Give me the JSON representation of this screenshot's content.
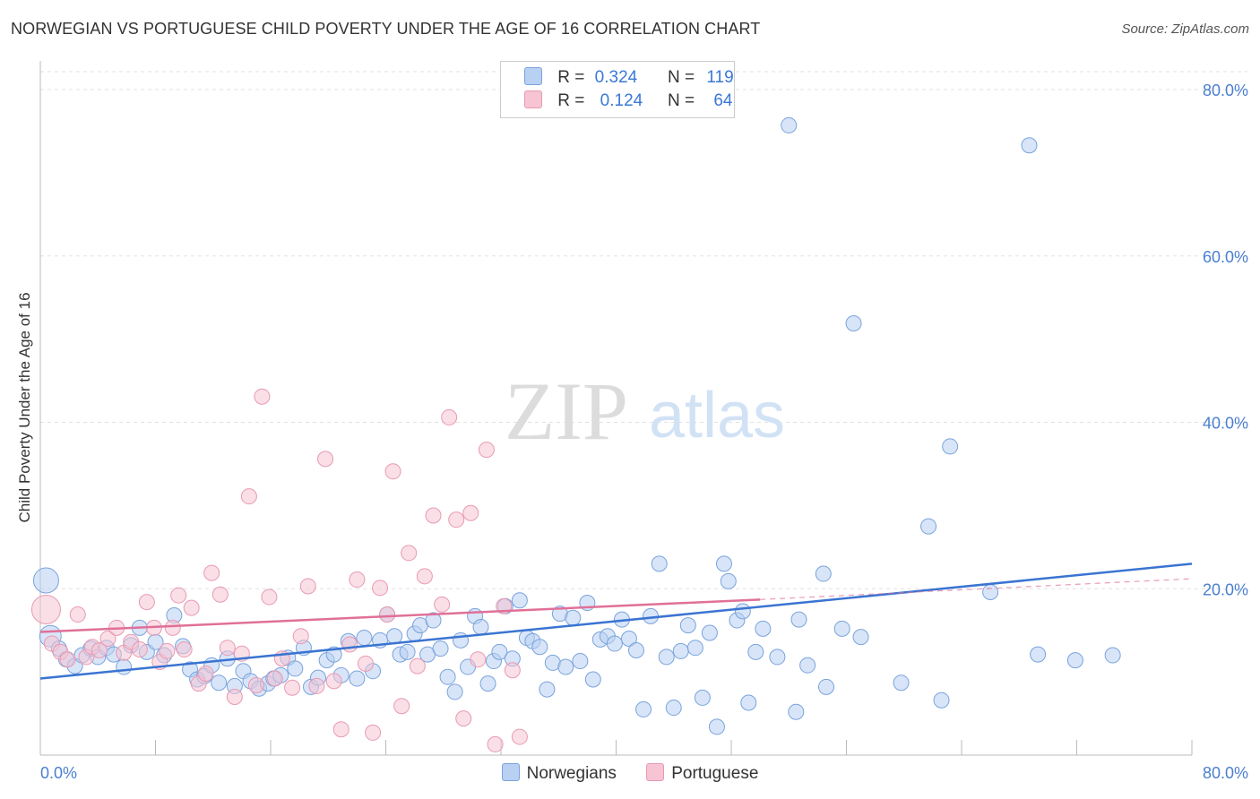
{
  "title": "NORWEGIAN VS PORTUGUESE CHILD POVERTY UNDER THE AGE OF 16 CORRELATION CHART",
  "source": "Source: ZipAtlas.com",
  "watermark": {
    "zip": "ZIP",
    "atlas": "atlas"
  },
  "legend": {
    "rows": [
      {
        "r_label": "R =",
        "r_value": "0.324",
        "n_label": "N =",
        "n_value": "119"
      },
      {
        "r_label": "R =",
        "r_value": "0.124",
        "n_label": "N =",
        "n_value": "64"
      }
    ]
  },
  "bottom_legend": [
    "Norwegians",
    "Portuguese"
  ],
  "colors": {
    "norwegians_fill": "#b8d0f2",
    "norwegians_stroke": "#7aa3dc",
    "norwegians_line": "#3a74d2",
    "portuguese_fill": "#f6c4d3",
    "portuguese_stroke": "#e89ab3",
    "portuguese_line": "#e07098",
    "tick": "#4a7fcf",
    "grid": "#e2e2e2"
  },
  "chart_data": {
    "type": "scatter",
    "title": "NORWEGIAN VS PORTUGUESE CHILD POVERTY UNDER THE AGE OF 16 CORRELATION CHART",
    "xlabel": "",
    "ylabel": "Child Poverty Under the Age of 16",
    "xlim": [
      0,
      80
    ],
    "ylim": [
      0,
      80
    ],
    "x_tick_labels": [
      "0.0%",
      "80.0%"
    ],
    "y_ticks": [
      20,
      40,
      60,
      80
    ],
    "y_tick_labels": [
      "20.0%",
      "40.0%",
      "60.0%",
      "80.0%"
    ],
    "grid": true,
    "legend_position": "top-center",
    "series": [
      {
        "name": "Norwegians",
        "R": 0.324,
        "N": 119,
        "trend": {
          "x": [
            0,
            80
          ],
          "y": [
            9.2,
            23.0
          ]
        },
        "points": [
          [
            0.4,
            21.0
          ],
          [
            0.7,
            14.3
          ],
          [
            1.3,
            12.8
          ],
          [
            1.8,
            11.5
          ],
          [
            2.4,
            10.7
          ],
          [
            2.9,
            12.0
          ],
          [
            3.5,
            12.8
          ],
          [
            4.0,
            11.8
          ],
          [
            4.6,
            12.9
          ],
          [
            5.1,
            12.1
          ],
          [
            5.8,
            10.6
          ],
          [
            6.3,
            13.2
          ],
          [
            6.9,
            15.3
          ],
          [
            7.4,
            12.4
          ],
          [
            8.0,
            13.6
          ],
          [
            8.6,
            12.0
          ],
          [
            9.3,
            16.8
          ],
          [
            9.9,
            13.1
          ],
          [
            10.4,
            10.3
          ],
          [
            10.9,
            9.1
          ],
          [
            11.4,
            9.5
          ],
          [
            11.9,
            10.8
          ],
          [
            12.4,
            8.7
          ],
          [
            13.0,
            11.6
          ],
          [
            13.5,
            8.3
          ],
          [
            14.1,
            10.1
          ],
          [
            14.6,
            8.9
          ],
          [
            15.2,
            8.0
          ],
          [
            15.8,
            8.6
          ],
          [
            16.2,
            9.2
          ],
          [
            16.7,
            9.6
          ],
          [
            17.2,
            11.7
          ],
          [
            17.7,
            10.4
          ],
          [
            18.3,
            12.9
          ],
          [
            18.8,
            8.2
          ],
          [
            19.3,
            9.3
          ],
          [
            19.9,
            11.4
          ],
          [
            20.4,
            12.1
          ],
          [
            20.9,
            9.6
          ],
          [
            21.4,
            13.7
          ],
          [
            22.0,
            9.2
          ],
          [
            22.5,
            14.1
          ],
          [
            23.1,
            10.1
          ],
          [
            23.6,
            13.8
          ],
          [
            24.1,
            16.9
          ],
          [
            24.6,
            14.3
          ],
          [
            25.0,
            12.1
          ],
          [
            25.5,
            12.4
          ],
          [
            26.0,
            14.6
          ],
          [
            26.4,
            15.6
          ],
          [
            26.9,
            12.1
          ],
          [
            27.3,
            16.2
          ],
          [
            27.8,
            12.8
          ],
          [
            28.3,
            9.4
          ],
          [
            28.8,
            7.6
          ],
          [
            29.2,
            13.8
          ],
          [
            29.7,
            10.6
          ],
          [
            30.2,
            16.7
          ],
          [
            30.6,
            15.4
          ],
          [
            31.1,
            8.6
          ],
          [
            31.5,
            11.3
          ],
          [
            31.9,
            12.4
          ],
          [
            32.3,
            17.9
          ],
          [
            32.8,
            11.6
          ],
          [
            33.3,
            18.6
          ],
          [
            33.8,
            14.1
          ],
          [
            34.2,
            13.7
          ],
          [
            34.7,
            13.0
          ],
          [
            35.2,
            7.9
          ],
          [
            35.6,
            11.1
          ],
          [
            36.1,
            17.0
          ],
          [
            36.5,
            10.6
          ],
          [
            37.0,
            16.5
          ],
          [
            37.5,
            11.3
          ],
          [
            38.0,
            18.3
          ],
          [
            38.4,
            9.1
          ],
          [
            38.9,
            13.9
          ],
          [
            39.4,
            14.3
          ],
          [
            39.9,
            13.4
          ],
          [
            40.4,
            16.3
          ],
          [
            40.9,
            14.0
          ],
          [
            41.4,
            12.6
          ],
          [
            41.9,
            5.5
          ],
          [
            42.4,
            16.7
          ],
          [
            43.0,
            23.0
          ],
          [
            43.5,
            11.8
          ],
          [
            44.0,
            5.7
          ],
          [
            44.5,
            12.5
          ],
          [
            45.0,
            15.6
          ],
          [
            45.5,
            12.9
          ],
          [
            46.0,
            6.9
          ],
          [
            46.5,
            14.7
          ],
          [
            47.0,
            3.4
          ],
          [
            47.5,
            23.0
          ],
          [
            47.8,
            20.9
          ],
          [
            48.4,
            16.2
          ],
          [
            48.8,
            17.3
          ],
          [
            49.2,
            6.3
          ],
          [
            49.7,
            12.4
          ],
          [
            50.2,
            15.2
          ],
          [
            51.2,
            11.8
          ],
          [
            52.0,
            75.7
          ],
          [
            52.5,
            5.2
          ],
          [
            52.7,
            16.3
          ],
          [
            53.3,
            10.8
          ],
          [
            54.4,
            21.8
          ],
          [
            54.6,
            8.2
          ],
          [
            55.7,
            15.2
          ],
          [
            56.5,
            51.9
          ],
          [
            57.0,
            14.2
          ],
          [
            61.7,
            27.5
          ],
          [
            62.6,
            6.6
          ],
          [
            63.2,
            37.1
          ],
          [
            68.7,
            73.3
          ],
          [
            69.3,
            12.1
          ],
          [
            71.9,
            11.4
          ],
          [
            59.8,
            8.7
          ],
          [
            66.0,
            19.6
          ],
          [
            74.5,
            12.0
          ]
        ]
      },
      {
        "name": "Portuguese",
        "R": 0.124,
        "N": 64,
        "trend": {
          "x": [
            0,
            50
          ],
          "y": [
            14.8,
            18.7
          ]
        },
        "trend_dashed": {
          "x": [
            50,
            80
          ],
          "y": [
            18.7,
            21.2
          ]
        },
        "points": [
          [
            0.4,
            17.5
          ],
          [
            0.8,
            13.4
          ],
          [
            1.4,
            12.4
          ],
          [
            1.9,
            11.5
          ],
          [
            2.6,
            16.9
          ],
          [
            3.2,
            11.8
          ],
          [
            3.6,
            13.0
          ],
          [
            4.1,
            12.6
          ],
          [
            4.7,
            14.0
          ],
          [
            5.3,
            15.3
          ],
          [
            5.8,
            12.3
          ],
          [
            6.3,
            13.6
          ],
          [
            6.9,
            12.7
          ],
          [
            7.4,
            18.4
          ],
          [
            7.9,
            15.3
          ],
          [
            8.3,
            11.2
          ],
          [
            8.8,
            12.5
          ],
          [
            9.2,
            15.3
          ],
          [
            9.6,
            19.2
          ],
          [
            10.0,
            12.7
          ],
          [
            10.5,
            17.7
          ],
          [
            11.0,
            8.6
          ],
          [
            11.5,
            9.8
          ],
          [
            11.9,
            21.9
          ],
          [
            12.5,
            19.3
          ],
          [
            13.0,
            12.9
          ],
          [
            13.5,
            7.0
          ],
          [
            14.0,
            12.2
          ],
          [
            14.5,
            31.1
          ],
          [
            15.0,
            8.4
          ],
          [
            15.4,
            43.1
          ],
          [
            15.9,
            19.0
          ],
          [
            16.3,
            9.2
          ],
          [
            16.8,
            11.6
          ],
          [
            17.5,
            8.1
          ],
          [
            18.1,
            14.3
          ],
          [
            18.6,
            20.3
          ],
          [
            19.2,
            8.3
          ],
          [
            19.8,
            35.6
          ],
          [
            20.4,
            8.9
          ],
          [
            20.9,
            3.1
          ],
          [
            21.5,
            13.3
          ],
          [
            22.0,
            21.1
          ],
          [
            22.6,
            11.0
          ],
          [
            23.1,
            2.7
          ],
          [
            23.6,
            20.1
          ],
          [
            24.1,
            16.9
          ],
          [
            24.5,
            34.1
          ],
          [
            25.1,
            5.9
          ],
          [
            25.6,
            24.3
          ],
          [
            26.2,
            10.7
          ],
          [
            26.7,
            21.5
          ],
          [
            27.3,
            28.8
          ],
          [
            27.9,
            18.1
          ],
          [
            28.4,
            40.6
          ],
          [
            28.9,
            28.3
          ],
          [
            29.4,
            4.4
          ],
          [
            29.9,
            29.1
          ],
          [
            30.4,
            11.5
          ],
          [
            31.0,
            36.7
          ],
          [
            31.6,
            1.3
          ],
          [
            32.2,
            17.9
          ],
          [
            32.8,
            10.2
          ],
          [
            33.3,
            2.2
          ]
        ]
      }
    ]
  }
}
